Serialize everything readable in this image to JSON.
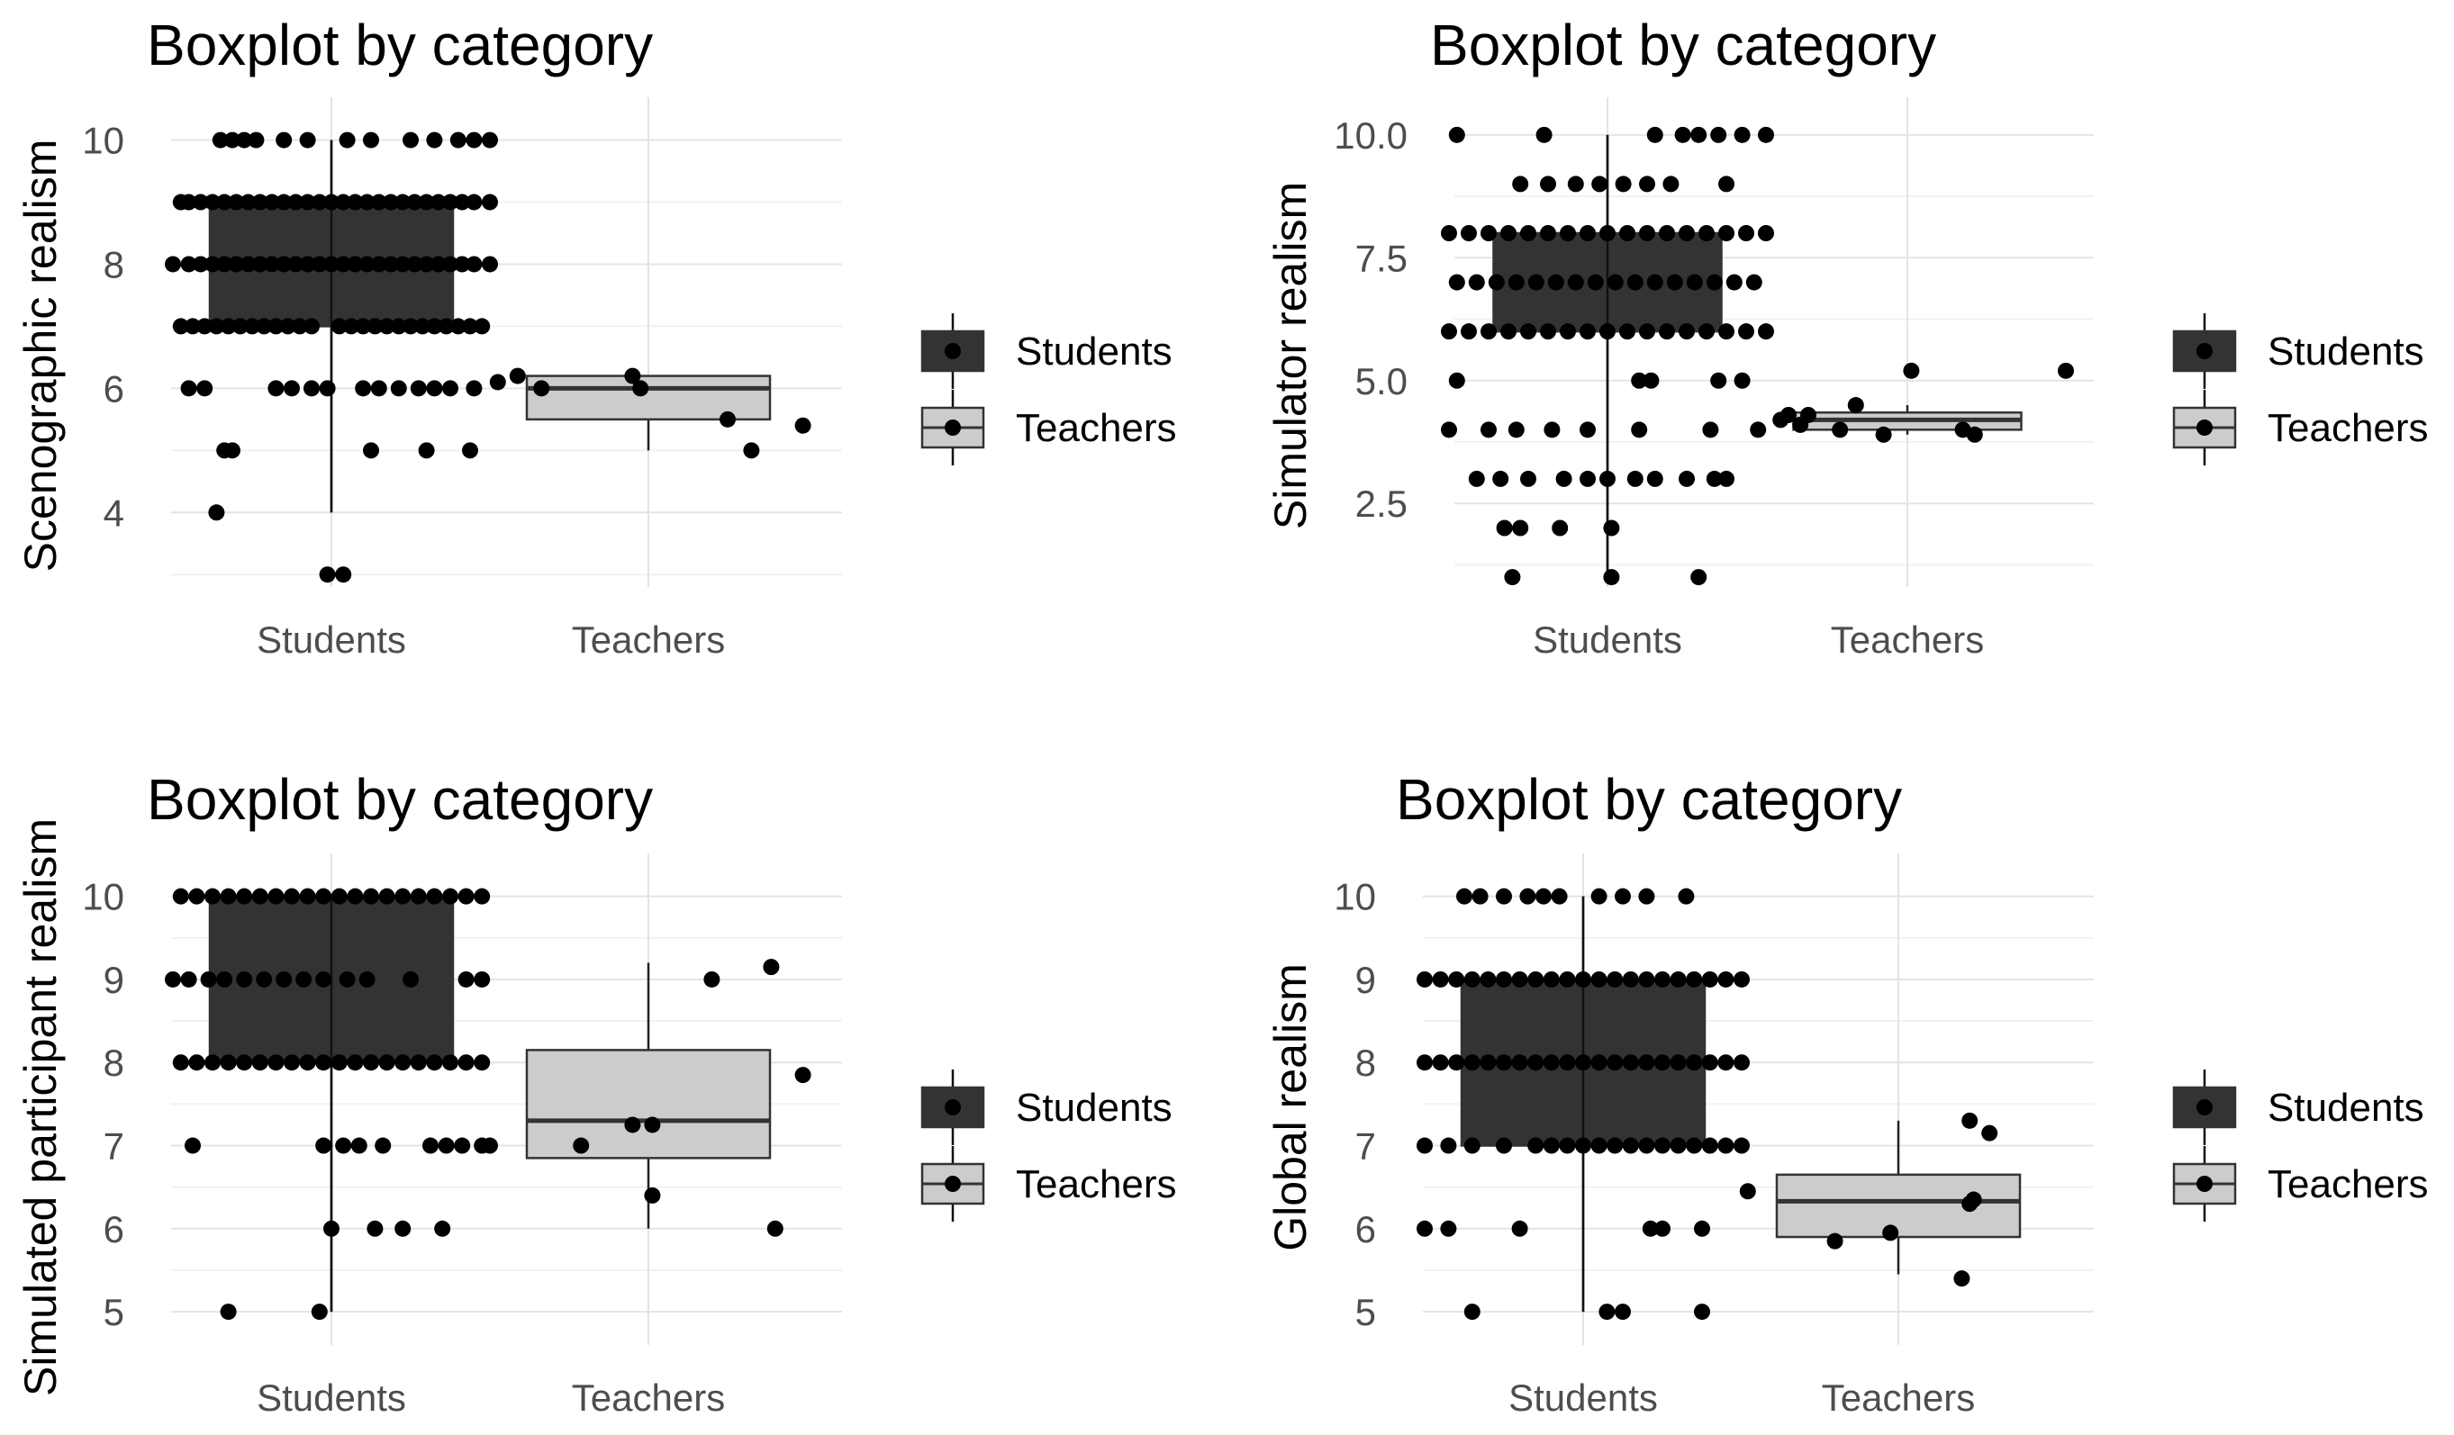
{
  "colors": {
    "students_fill": "#333333",
    "teachers_fill": "#cccccc",
    "point": "#000000",
    "grid_major": "#e4e4e4",
    "grid_minor": "#f1f1f1"
  },
  "legend": {
    "title": "",
    "entries": [
      "Students",
      "Teachers"
    ]
  },
  "chart_data": [
    {
      "type": "boxplot",
      "title": "Boxplot by category",
      "xlabel": "",
      "ylabel": "Scenographic realism",
      "categories": [
        "Students",
        "Teachers"
      ],
      "ylim": [
        2.8,
        10.4
      ],
      "yticks": [
        4,
        6,
        8,
        10
      ],
      "ytick_labels": [
        "4",
        "6",
        "8",
        "10"
      ],
      "boxes": [
        {
          "name": "Students",
          "min": 4,
          "q1": 7,
          "median": 8,
          "q3": 9,
          "max": 10
        },
        {
          "name": "Teachers",
          "min": 5,
          "q1": 5.5,
          "median": 6,
          "q3": 6.2,
          "max": 6.2
        }
      ],
      "points": [
        {
          "x": "Students",
          "jitter": [
            -0.28,
            -0.25,
            -0.22,
            -0.19,
            -0.12,
            -0.06,
            0.04,
            0.1,
            0.2,
            0.26,
            0.32,
            0.36,
            0.4
          ],
          "y": 10
        },
        {
          "x": "Students",
          "jitter": [
            -0.38,
            -0.36,
            -0.33,
            -0.3,
            -0.27,
            -0.24,
            -0.21,
            -0.18,
            -0.15,
            -0.12,
            -0.09,
            -0.06,
            -0.03,
            0,
            0.03,
            0.06,
            0.09,
            0.12,
            0.15,
            0.18,
            0.21,
            0.24,
            0.27,
            0.3,
            0.33,
            0.36,
            0.4
          ],
          "y": 9
        },
        {
          "x": "Students",
          "jitter": [
            -0.4,
            -0.36,
            -0.33,
            -0.3,
            -0.27,
            -0.24,
            -0.21,
            -0.18,
            -0.15,
            -0.12,
            -0.09,
            -0.06,
            -0.03,
            0,
            0.03,
            0.06,
            0.09,
            0.12,
            0.15,
            0.18,
            0.21,
            0.24,
            0.27,
            0.3,
            0.33,
            0.36,
            0.4
          ],
          "y": 8
        },
        {
          "x": "Students",
          "jitter": [
            -0.38,
            -0.35,
            -0.32,
            -0.29,
            -0.26,
            -0.23,
            -0.2,
            -0.17,
            -0.14,
            -0.11,
            -0.08,
            -0.05,
            0.02,
            0.05,
            0.08,
            0.11,
            0.14,
            0.17,
            0.2,
            0.23,
            0.26,
            0.29,
            0.32,
            0.35,
            0.38
          ],
          "y": 7
        },
        {
          "x": "Students",
          "jitter": [
            -0.36,
            -0.32,
            -0.14,
            -0.1,
            -0.05,
            -0.01,
            0.08,
            0.12,
            0.17,
            0.22,
            0.26,
            0.3,
            0.36
          ],
          "y": 6
        },
        {
          "x": "Students",
          "jitter": [
            -0.27,
            -0.25,
            0.1,
            0.24,
            0.35
          ],
          "y": 5
        },
        {
          "x": "Students",
          "jitter": [
            -0.29
          ],
          "y": 4
        },
        {
          "x": "Students",
          "jitter": [
            -0.01,
            0.03
          ],
          "y": 3
        },
        {
          "x": "Teachers",
          "jitter": [
            -0.38,
            -0.33,
            -0.27,
            -0.04,
            -0.02,
            0.2,
            0.26,
            0.39
          ],
          "y": [
            6.1,
            6.2,
            6.0,
            6.2,
            6.0,
            5.5,
            5.0,
            5.4
          ]
        }
      ]
    },
    {
      "type": "boxplot",
      "title": "Boxplot by category",
      "xlabel": "",
      "ylabel": "Simulator realism",
      "categories": [
        "Students",
        "Teachers"
      ],
      "ylim": [
        0.8,
        10.4
      ],
      "yticks": [
        2.5,
        5.0,
        7.5,
        10.0
      ],
      "ytick_labels": [
        "2.5",
        "5.0",
        "7.5",
        "10.0"
      ],
      "boxes": [
        {
          "name": "Students",
          "min": 1,
          "q1": 6,
          "median": 7,
          "q3": 8,
          "max": 10
        },
        {
          "name": "Teachers",
          "min": 3.9,
          "q1": 4.0,
          "median": 4.2,
          "q3": 4.35,
          "max": 4.5
        }
      ],
      "points": [
        {
          "x": "Students",
          "jitter": [
            -0.38,
            -0.16,
            0.12,
            0.19,
            0.23,
            0.28,
            0.34,
            0.4
          ],
          "y": 10
        },
        {
          "x": "Students",
          "jitter": [
            -0.22,
            -0.15,
            -0.08,
            -0.02,
            0.04,
            0.1,
            0.16,
            0.3
          ],
          "y": 9
        },
        {
          "x": "Students",
          "jitter": [
            -0.4,
            -0.35,
            -0.3,
            -0.25,
            -0.2,
            -0.15,
            -0.1,
            -0.05,
            0,
            0.05,
            0.1,
            0.15,
            0.2,
            0.25,
            0.3,
            0.35,
            0.4
          ],
          "y": 8
        },
        {
          "x": "Students",
          "jitter": [
            -0.38,
            -0.33,
            -0.28,
            -0.23,
            -0.18,
            -0.13,
            -0.08,
            -0.03,
            0.02,
            0.07,
            0.12,
            0.17,
            0.22,
            0.27,
            0.32,
            0.37
          ],
          "y": 7
        },
        {
          "x": "Students",
          "jitter": [
            -0.4,
            -0.35,
            -0.3,
            -0.25,
            -0.2,
            -0.15,
            -0.1,
            -0.05,
            0,
            0.05,
            0.1,
            0.15,
            0.2,
            0.25,
            0.3,
            0.35,
            0.4
          ],
          "y": 6
        },
        {
          "x": "Students",
          "jitter": [
            -0.38,
            0.08,
            0.11,
            0.28,
            0.34
          ],
          "y": 5
        },
        {
          "x": "Students",
          "jitter": [
            -0.4,
            -0.3,
            -0.23,
            -0.14,
            -0.05,
            0.08,
            0.26,
            0.38
          ],
          "y": 4
        },
        {
          "x": "Students",
          "jitter": [
            -0.33,
            -0.27,
            -0.2,
            -0.11,
            -0.05,
            0,
            0.07,
            0.12,
            0.2,
            0.27,
            0.3
          ],
          "y": 3
        },
        {
          "x": "Students",
          "jitter": [
            -0.26,
            -0.22,
            -0.12,
            0.01
          ],
          "y": 2
        },
        {
          "x": "Students",
          "jitter": [
            -0.24,
            0.01,
            0.23
          ],
          "y": 1
        },
        {
          "x": "Teachers",
          "jitter": [
            -0.32,
            -0.3,
            -0.27,
            -0.25,
            -0.17,
            -0.13,
            -0.06,
            0.01,
            0.14,
            0.17,
            0.4
          ],
          "y": [
            4.2,
            4.3,
            4.1,
            4.3,
            4.0,
            4.5,
            3.9,
            5.2,
            4.0,
            3.9,
            5.2
          ]
        }
      ]
    },
    {
      "type": "boxplot",
      "title": "Boxplot by category",
      "xlabel": "",
      "ylabel": "Simulated participant realism",
      "categories": [
        "Students",
        "Teachers"
      ],
      "ylim": [
        4.6,
        10.3
      ],
      "yticks": [
        5,
        6,
        7,
        8,
        9,
        10
      ],
      "ytick_labels": [
        "5",
        "6",
        "7",
        "8",
        "9",
        "10"
      ],
      "boxes": [
        {
          "name": "Students",
          "min": 5,
          "q1": 8,
          "median": 9,
          "q3": 10,
          "max": 10
        },
        {
          "name": "Teachers",
          "min": 6,
          "q1": 6.85,
          "median": 7.3,
          "q3": 8.15,
          "max": 9.2
        }
      ],
      "points": [
        {
          "x": "Students",
          "jitter": [
            -0.38,
            -0.34,
            -0.3,
            -0.26,
            -0.22,
            -0.18,
            -0.14,
            -0.1,
            -0.06,
            -0.02,
            0.02,
            0.06,
            0.1,
            0.14,
            0.18,
            0.22,
            0.26,
            0.3,
            0.34,
            0.38
          ],
          "y": 10
        },
        {
          "x": "Students",
          "jitter": [
            -0.4,
            -0.36,
            -0.31,
            -0.27,
            -0.22,
            -0.17,
            -0.12,
            -0.07,
            -0.02,
            0.04,
            0.09,
            0.2,
            0.34,
            0.38
          ],
          "y": 9
        },
        {
          "x": "Students",
          "jitter": [
            -0.38,
            -0.34,
            -0.3,
            -0.26,
            -0.22,
            -0.18,
            -0.14,
            -0.1,
            -0.06,
            -0.02,
            0.02,
            0.06,
            0.1,
            0.14,
            0.18,
            0.22,
            0.26,
            0.3,
            0.34,
            0.38
          ],
          "y": 8
        },
        {
          "x": "Students",
          "jitter": [
            -0.35,
            -0.02,
            0.03,
            0.07,
            0.13,
            0.25,
            0.29,
            0.33,
            0.38,
            0.4
          ],
          "y": 7
        },
        {
          "x": "Students",
          "jitter": [
            0,
            0.11,
            0.18,
            0.28
          ],
          "y": 6
        },
        {
          "x": "Students",
          "jitter": [
            -0.26,
            -0.03
          ],
          "y": 5
        },
        {
          "x": "Teachers",
          "jitter": [
            -0.17,
            -0.04,
            0.01,
            0.01,
            0.16,
            0.31,
            0.39,
            0.32
          ],
          "y": [
            7.0,
            7.25,
            7.25,
            6.4,
            9.0,
            9.15,
            7.85,
            6.0
          ]
        }
      ]
    },
    {
      "type": "boxplot",
      "title": "Boxplot by category",
      "xlabel": "",
      "ylabel": "Global realism",
      "categories": [
        "Students",
        "Teachers"
      ],
      "ylim": [
        4.6,
        10.3
      ],
      "yticks": [
        5,
        6,
        7,
        8,
        9,
        10
      ],
      "ytick_labels": [
        "5",
        "6",
        "7",
        "8",
        "9",
        "10"
      ],
      "boxes": [
        {
          "name": "Students",
          "min": 5,
          "q1": 7,
          "median": 8,
          "q3": 9,
          "max": 10
        },
        {
          "name": "Teachers",
          "min": 5.45,
          "q1": 5.9,
          "median": 6.33,
          "q3": 6.65,
          "max": 7.3
        }
      ],
      "points": [
        {
          "x": "Students",
          "jitter": [
            -0.3,
            -0.26,
            -0.2,
            -0.14,
            -0.1,
            -0.06,
            0.04,
            0.1,
            0.16,
            0.26
          ],
          "y": 10
        },
        {
          "x": "Students",
          "jitter": [
            -0.4,
            -0.36,
            -0.32,
            -0.28,
            -0.24,
            -0.2,
            -0.16,
            -0.12,
            -0.08,
            -0.04,
            0,
            0.04,
            0.08,
            0.12,
            0.16,
            0.2,
            0.24,
            0.28,
            0.32,
            0.36,
            0.4
          ],
          "y": 9
        },
        {
          "x": "Students",
          "jitter": [
            -0.4,
            -0.36,
            -0.32,
            -0.28,
            -0.24,
            -0.2,
            -0.16,
            -0.12,
            -0.08,
            -0.04,
            0,
            0.04,
            0.08,
            0.12,
            0.16,
            0.2,
            0.24,
            0.28,
            0.32,
            0.36,
            0.4
          ],
          "y": 8
        },
        {
          "x": "Students",
          "jitter": [
            -0.4,
            -0.34,
            -0.28,
            -0.2,
            -0.12,
            -0.08,
            -0.04,
            0,
            0.04,
            0.08,
            0.12,
            0.16,
            0.2,
            0.24,
            0.28,
            0.32,
            0.36,
            0.4
          ],
          "y": 7
        },
        {
          "x": "Students",
          "jitter": [
            -0.4,
            -0.34,
            -0.16,
            0.17,
            0.2,
            0.3
          ],
          "y": 6
        },
        {
          "x": "Students",
          "jitter": [
            -0.28,
            0.06,
            0.1,
            0.3
          ],
          "y": 5
        },
        {
          "x": "Teachers",
          "jitter": [
            -0.38,
            -0.16,
            -0.02,
            0.18,
            0.18,
            0.16,
            0.23,
            0.19
          ],
          "y": [
            6.45,
            5.85,
            5.95,
            7.3,
            6.3,
            5.4,
            7.15,
            6.35
          ]
        }
      ]
    }
  ]
}
